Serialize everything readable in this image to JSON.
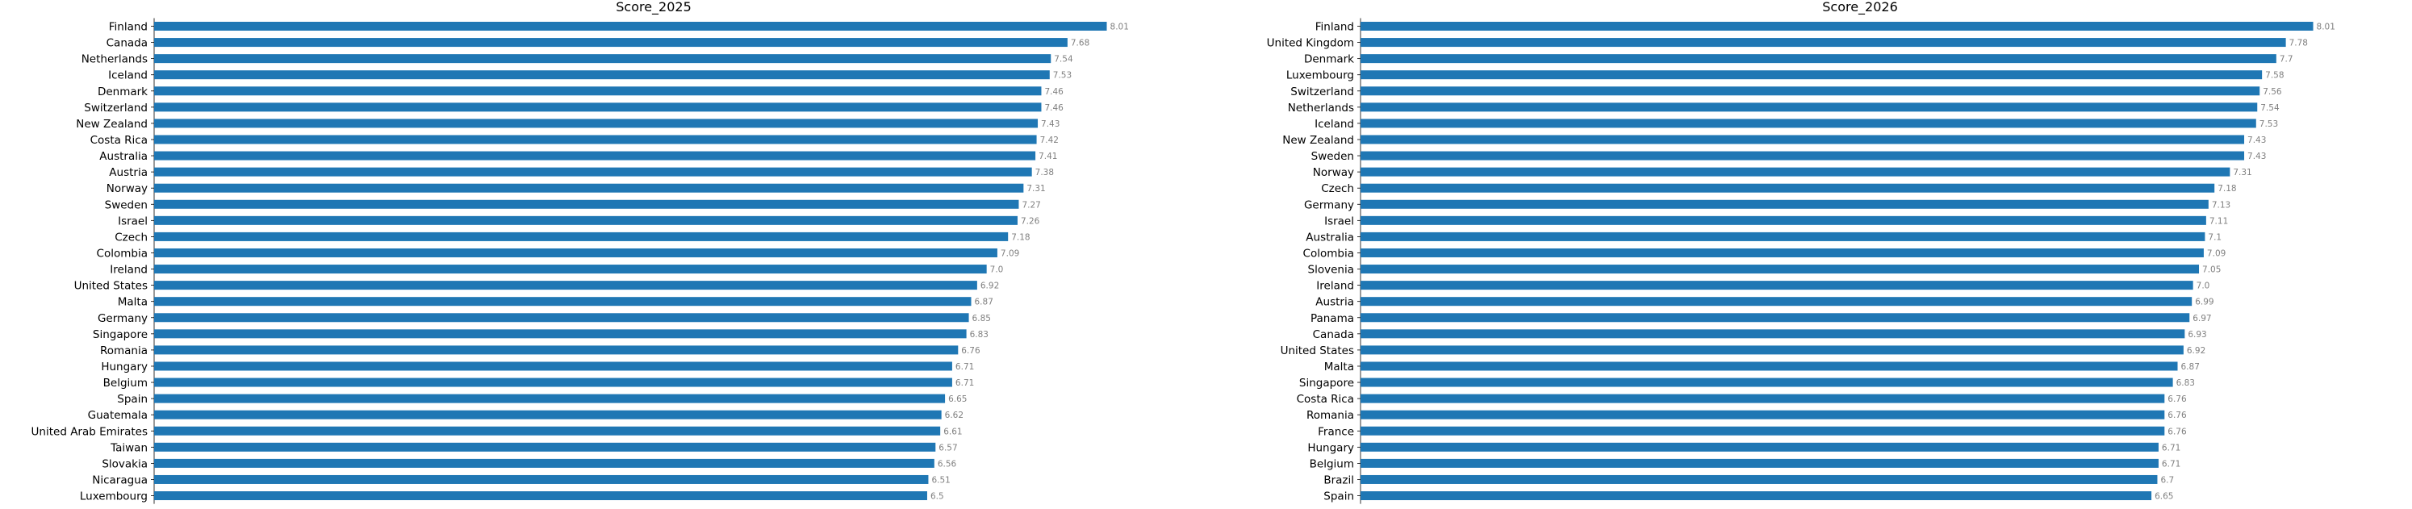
{
  "chart_data": [
    {
      "type": "bar",
      "orientation": "horizontal",
      "title": "Score_2025",
      "color": "#1f77b4",
      "xlim": [
        0,
        8.4
      ],
      "grid": false,
      "categories": [
        "Finland",
        "Canada",
        "Netherlands",
        "Iceland",
        "Denmark",
        "Switzerland",
        "New Zealand",
        "Costa Rica",
        "Australia",
        "Austria",
        "Norway",
        "Sweden",
        "Israel",
        "Czech",
        "Colombia",
        "Ireland",
        "United States",
        "Malta",
        "Germany",
        "Singapore",
        "Romania",
        "Hungary",
        "Belgium",
        "Spain",
        "Guatemala",
        "United Arab Emirates",
        "Taiwan",
        "Slovakia",
        "Nicaragua",
        "Luxembourg"
      ],
      "values": [
        8.01,
        7.68,
        7.54,
        7.53,
        7.46,
        7.46,
        7.43,
        7.42,
        7.41,
        7.38,
        7.31,
        7.27,
        7.26,
        7.18,
        7.09,
        7.0,
        6.92,
        6.87,
        6.85,
        6.83,
        6.76,
        6.71,
        6.71,
        6.65,
        6.62,
        6.61,
        6.57,
        6.56,
        6.51,
        6.5
      ],
      "value_labels": [
        "8.01",
        "7.68",
        "7.54",
        "7.53",
        "7.46",
        "7.46",
        "7.43",
        "7.42",
        "7.41",
        "7.38",
        "7.31",
        "7.27",
        "7.26",
        "7.18",
        "7.09",
        "7.0",
        "6.92",
        "6.87",
        "6.85",
        "6.83",
        "6.76",
        "6.71",
        "6.71",
        "6.65",
        "6.62",
        "6.61",
        "6.57",
        "6.56",
        "6.51",
        "6.5"
      ]
    },
    {
      "type": "bar",
      "orientation": "horizontal",
      "title": "Score_2026",
      "color": "#1f77b4",
      "xlim": [
        0,
        8.4
      ],
      "grid": false,
      "categories": [
        "Finland",
        "United Kingdom",
        "Denmark",
        "Luxembourg",
        "Switzerland",
        "Netherlands",
        "Iceland",
        "New Zealand",
        "Sweden",
        "Norway",
        "Czech",
        "Germany",
        "Israel",
        "Australia",
        "Colombia",
        "Slovenia",
        "Ireland",
        "Austria",
        "Panama",
        "Canada",
        "United States",
        "Malta",
        "Singapore",
        "Costa Rica",
        "Romania",
        "France",
        "Hungary",
        "Belgium",
        "Brazil",
        "Spain"
      ],
      "values": [
        8.01,
        7.78,
        7.7,
        7.58,
        7.56,
        7.54,
        7.53,
        7.43,
        7.43,
        7.31,
        7.18,
        7.13,
        7.11,
        7.1,
        7.09,
        7.05,
        7.0,
        6.99,
        6.97,
        6.93,
        6.92,
        6.87,
        6.83,
        6.76,
        6.76,
        6.76,
        6.71,
        6.71,
        6.7,
        6.65
      ],
      "value_labels": [
        "8.01",
        "7.78",
        "7.7",
        "7.58",
        "7.56",
        "7.54",
        "7.53",
        "7.43",
        "7.43",
        "7.31",
        "7.18",
        "7.13",
        "7.11",
        "7.1",
        "7.09",
        "7.05",
        "7.0",
        "6.99",
        "6.97",
        "6.93",
        "6.92",
        "6.87",
        "6.83",
        "6.76",
        "6.76",
        "6.76",
        "6.71",
        "6.71",
        "6.7",
        "6.65"
      ]
    }
  ]
}
